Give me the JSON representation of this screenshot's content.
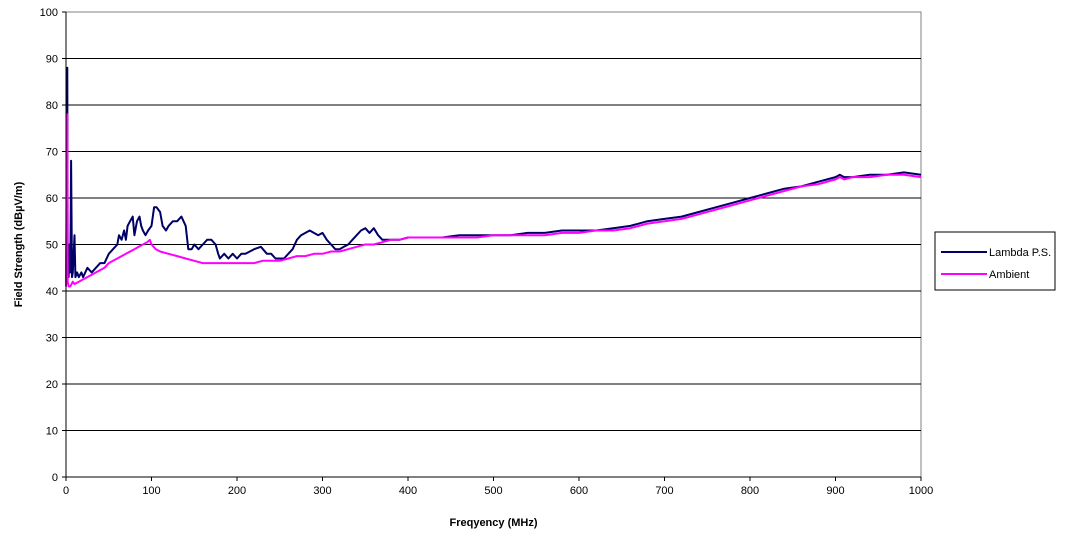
{
  "chart_data": {
    "type": "line",
    "xlabel": "Freqyency (MHz)",
    "ylabel": "Field Strength (dBµV/m)",
    "xlim": [
      0,
      1000
    ],
    "ylim": [
      0,
      100
    ],
    "x_ticks": [
      0,
      100,
      200,
      300,
      400,
      500,
      600,
      700,
      800,
      900,
      1000
    ],
    "y_ticks": [
      0,
      10,
      20,
      30,
      40,
      50,
      60,
      70,
      80,
      90,
      100
    ],
    "grid": "horizontal",
    "legend_position": "right",
    "series": [
      {
        "name": "Lambda P.S.",
        "color": "#000066",
        "points": [
          [
            0,
            41
          ],
          [
            1,
            60
          ],
          [
            1.5,
            88
          ],
          [
            2,
            45
          ],
          [
            3,
            43
          ],
          [
            4,
            50
          ],
          [
            5,
            44
          ],
          [
            6,
            68
          ],
          [
            7,
            43
          ],
          [
            8,
            44
          ],
          [
            10,
            52
          ],
          [
            11,
            43
          ],
          [
            13,
            44
          ],
          [
            15,
            43
          ],
          [
            18,
            44
          ],
          [
            20,
            43
          ],
          [
            25,
            45
          ],
          [
            30,
            44
          ],
          [
            35,
            45
          ],
          [
            40,
            46
          ],
          [
            45,
            46
          ],
          [
            50,
            48
          ],
          [
            55,
            49
          ],
          [
            60,
            50
          ],
          [
            62,
            52
          ],
          [
            65,
            51
          ],
          [
            68,
            53
          ],
          [
            70,
            51
          ],
          [
            72,
            54
          ],
          [
            75,
            55
          ],
          [
            78,
            56
          ],
          [
            80,
            52
          ],
          [
            83,
            55
          ],
          [
            86,
            56
          ],
          [
            88,
            54
          ],
          [
            90,
            53
          ],
          [
            93,
            52
          ],
          [
            96,
            53
          ],
          [
            100,
            54
          ],
          [
            103,
            58
          ],
          [
            106,
            58
          ],
          [
            110,
            57
          ],
          [
            113,
            54
          ],
          [
            117,
            53
          ],
          [
            120,
            54
          ],
          [
            125,
            55
          ],
          [
            130,
            55
          ],
          [
            135,
            56
          ],
          [
            140,
            54
          ],
          [
            143,
            49
          ],
          [
            147,
            49
          ],
          [
            150,
            50
          ],
          [
            155,
            49
          ],
          [
            160,
            50
          ],
          [
            165,
            51
          ],
          [
            170,
            51
          ],
          [
            175,
            50
          ],
          [
            178,
            48
          ],
          [
            180,
            47
          ],
          [
            185,
            48
          ],
          [
            190,
            47
          ],
          [
            195,
            48
          ],
          [
            200,
            47
          ],
          [
            205,
            48
          ],
          [
            210,
            48
          ],
          [
            220,
            49
          ],
          [
            228,
            49.5
          ],
          [
            235,
            48
          ],
          [
            240,
            48
          ],
          [
            245,
            47
          ],
          [
            250,
            47
          ],
          [
            255,
            47
          ],
          [
            260,
            48
          ],
          [
            265,
            49
          ],
          [
            270,
            51
          ],
          [
            275,
            52
          ],
          [
            280,
            52.5
          ],
          [
            285,
            53
          ],
          [
            290,
            52.5
          ],
          [
            295,
            52
          ],
          [
            300,
            52.5
          ],
          [
            305,
            51
          ],
          [
            310,
            50
          ],
          [
            315,
            49
          ],
          [
            320,
            49
          ],
          [
            325,
            49.5
          ],
          [
            330,
            50
          ],
          [
            335,
            51
          ],
          [
            340,
            52
          ],
          [
            345,
            53
          ],
          [
            350,
            53.5
          ],
          [
            355,
            52.5
          ],
          [
            360,
            53.5
          ],
          [
            365,
            52
          ],
          [
            370,
            51
          ],
          [
            375,
            51
          ],
          [
            380,
            51
          ],
          [
            390,
            51
          ],
          [
            400,
            51.5
          ],
          [
            420,
            51.5
          ],
          [
            440,
            51.5
          ],
          [
            460,
            52
          ],
          [
            480,
            52
          ],
          [
            500,
            52
          ],
          [
            520,
            52
          ],
          [
            540,
            52.5
          ],
          [
            560,
            52.5
          ],
          [
            580,
            53
          ],
          [
            600,
            53
          ],
          [
            620,
            53
          ],
          [
            640,
            53.5
          ],
          [
            660,
            54
          ],
          [
            680,
            55
          ],
          [
            700,
            55.5
          ],
          [
            720,
            56
          ],
          [
            740,
            57
          ],
          [
            760,
            58
          ],
          [
            780,
            59
          ],
          [
            800,
            60
          ],
          [
            820,
            61
          ],
          [
            840,
            62
          ],
          [
            860,
            62.5
          ],
          [
            880,
            63.5
          ],
          [
            900,
            64.5
          ],
          [
            905,
            65
          ],
          [
            910,
            64.5
          ],
          [
            920,
            64.5
          ],
          [
            940,
            65
          ],
          [
            960,
            65
          ],
          [
            980,
            65.5
          ],
          [
            1000,
            65
          ]
        ]
      },
      {
        "name": "Ambient",
        "color": "#ff00ff",
        "points": [
          [
            0,
            41
          ],
          [
            1,
            75
          ],
          [
            1.5,
            78
          ],
          [
            2,
            42
          ],
          [
            3,
            41
          ],
          [
            5,
            41
          ],
          [
            8,
            42
          ],
          [
            10,
            41.5
          ],
          [
            15,
            42
          ],
          [
            20,
            42.5
          ],
          [
            25,
            43
          ],
          [
            30,
            43.5
          ],
          [
            35,
            44
          ],
          [
            40,
            44.5
          ],
          [
            45,
            45
          ],
          [
            50,
            46
          ],
          [
            55,
            46.5
          ],
          [
            60,
            47
          ],
          [
            65,
            47.5
          ],
          [
            70,
            48
          ],
          [
            75,
            48.5
          ],
          [
            80,
            49
          ],
          [
            85,
            49.5
          ],
          [
            90,
            50
          ],
          [
            95,
            50.5
          ],
          [
            98,
            51
          ],
          [
            100,
            50
          ],
          [
            105,
            49
          ],
          [
            110,
            48.5
          ],
          [
            120,
            48
          ],
          [
            130,
            47.5
          ],
          [
            140,
            47
          ],
          [
            150,
            46.5
          ],
          [
            160,
            46
          ],
          [
            170,
            46
          ],
          [
            180,
            46
          ],
          [
            190,
            46
          ],
          [
            200,
            46
          ],
          [
            210,
            46
          ],
          [
            220,
            46
          ],
          [
            230,
            46.5
          ],
          [
            240,
            46.5
          ],
          [
            250,
            46.5
          ],
          [
            260,
            47
          ],
          [
            270,
            47.5
          ],
          [
            280,
            47.5
          ],
          [
            290,
            48
          ],
          [
            300,
            48
          ],
          [
            310,
            48.5
          ],
          [
            320,
            48.5
          ],
          [
            330,
            49
          ],
          [
            340,
            49.5
          ],
          [
            350,
            50
          ],
          [
            360,
            50
          ],
          [
            370,
            50.5
          ],
          [
            380,
            51
          ],
          [
            390,
            51
          ],
          [
            400,
            51.5
          ],
          [
            420,
            51.5
          ],
          [
            440,
            51.5
          ],
          [
            460,
            51.5
          ],
          [
            480,
            51.5
          ],
          [
            500,
            52
          ],
          [
            520,
            52
          ],
          [
            540,
            52
          ],
          [
            560,
            52
          ],
          [
            580,
            52.5
          ],
          [
            600,
            52.5
          ],
          [
            620,
            53
          ],
          [
            640,
            53
          ],
          [
            660,
            53.5
          ],
          [
            680,
            54.5
          ],
          [
            700,
            55
          ],
          [
            720,
            55.5
          ],
          [
            740,
            56.5
          ],
          [
            760,
            57.5
          ],
          [
            780,
            58.5
          ],
          [
            800,
            59.5
          ],
          [
            820,
            60.5
          ],
          [
            840,
            61.5
          ],
          [
            860,
            62.5
          ],
          [
            880,
            63
          ],
          [
            900,
            64
          ],
          [
            905,
            64.5
          ],
          [
            910,
            64
          ],
          [
            920,
            64.5
          ],
          [
            940,
            64.5
          ],
          [
            960,
            65
          ],
          [
            980,
            65
          ],
          [
            1000,
            64.5
          ]
        ]
      }
    ]
  }
}
